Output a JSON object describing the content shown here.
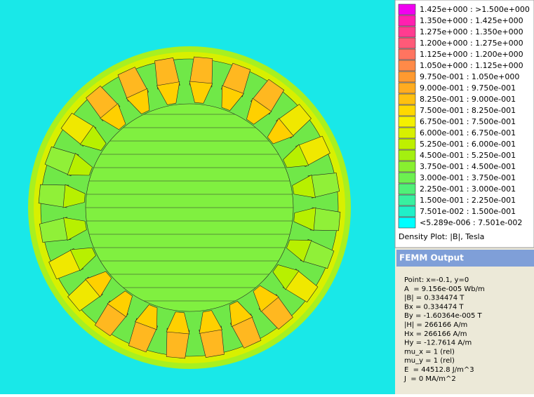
{
  "legend": {
    "entries": [
      {
        "label": "1.425e+000 : >1.500e+000",
        "color": "#f000f0"
      },
      {
        "label": "1.350e+000 : 1.425e+000",
        "color": "#ff20b0"
      },
      {
        "label": "1.275e+000 : 1.350e+000",
        "color": "#ff3c90"
      },
      {
        "label": "1.200e+000 : 1.275e+000",
        "color": "#ff5a78"
      },
      {
        "label": "1.125e+000 : 1.200e+000",
        "color": "#ff7460"
      },
      {
        "label": "1.050e+000 : 1.125e+000",
        "color": "#ff8a48"
      },
      {
        "label": "9.750e-001 : 1.050e+000",
        "color": "#ff9a30"
      },
      {
        "label": "9.000e-001 : 9.750e-001",
        "color": "#ffac20"
      },
      {
        "label": "8.250e-001 : 9.000e-001",
        "color": "#ffc010"
      },
      {
        "label": "7.500e-001 : 8.250e-001",
        "color": "#ffd800"
      },
      {
        "label": "6.750e-001 : 7.500e-001",
        "color": "#f4f000"
      },
      {
        "label": "6.000e-001 : 6.750e-001",
        "color": "#d8f000"
      },
      {
        "label": "5.250e-001 : 6.000e-001",
        "color": "#bef000"
      },
      {
        "label": "4.500e-001 : 5.250e-001",
        "color": "#a4f010"
      },
      {
        "label": "3.750e-001 : 4.500e-001",
        "color": "#88f030"
      },
      {
        "label": "3.000e-001 : 3.750e-001",
        "color": "#6cf050"
      },
      {
        "label": "2.250e-001 : 3.000e-001",
        "color": "#50f078"
      },
      {
        "label": "1.500e-001 : 2.250e-001",
        "color": "#38f0a0"
      },
      {
        "label": "7.501e-002 : 1.500e-001",
        "color": "#20f0c8"
      },
      {
        "label": "<5.289e-006 : 7.501e-002",
        "color": "#00ffff"
      }
    ],
    "caption": "Density Plot: |B|, Tesla"
  },
  "output": {
    "title": "FEMM Output",
    "lines": [
      "Point: x=-0.1, y=0",
      "A  = 9.156e-005 Wb/m",
      "|B| = 0.334474 T",
      "Bx = 0.334474 T",
      "By = -1.60364e-005 T",
      "|H| = 266166 A/m",
      "Hx = 266166 A/m",
      "Hy = -12.7614 A/m",
      "mu_x = 1 (rel)",
      "mu_y = 1 (rel)",
      "E  = 44512.8 J/m^3",
      "J  = 0 MA/m^2"
    ]
  }
}
